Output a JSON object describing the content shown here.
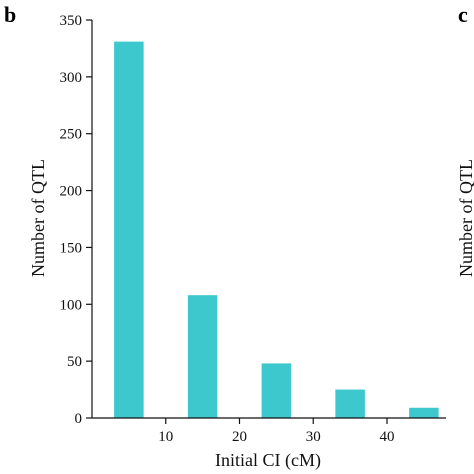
{
  "panels": {
    "left": "b",
    "right": "c"
  },
  "chart_data": {
    "type": "bar",
    "x": [
      5,
      15,
      25,
      35,
      45
    ],
    "values": [
      331,
      108,
      48,
      25,
      9
    ],
    "bar_width": 4,
    "xlabel": "Initial CI (cM)",
    "ylabel": "Number of QTL",
    "xlim": [
      0,
      48
    ],
    "ylim": [
      0,
      350
    ],
    "xticks": [
      10,
      20,
      30,
      40
    ],
    "yticks": [
      0,
      50,
      100,
      150,
      200,
      250,
      300,
      350
    ],
    "grid": false,
    "bar_color": "#3cc8cc"
  },
  "neighbor_ylabel": "Number of QTL"
}
